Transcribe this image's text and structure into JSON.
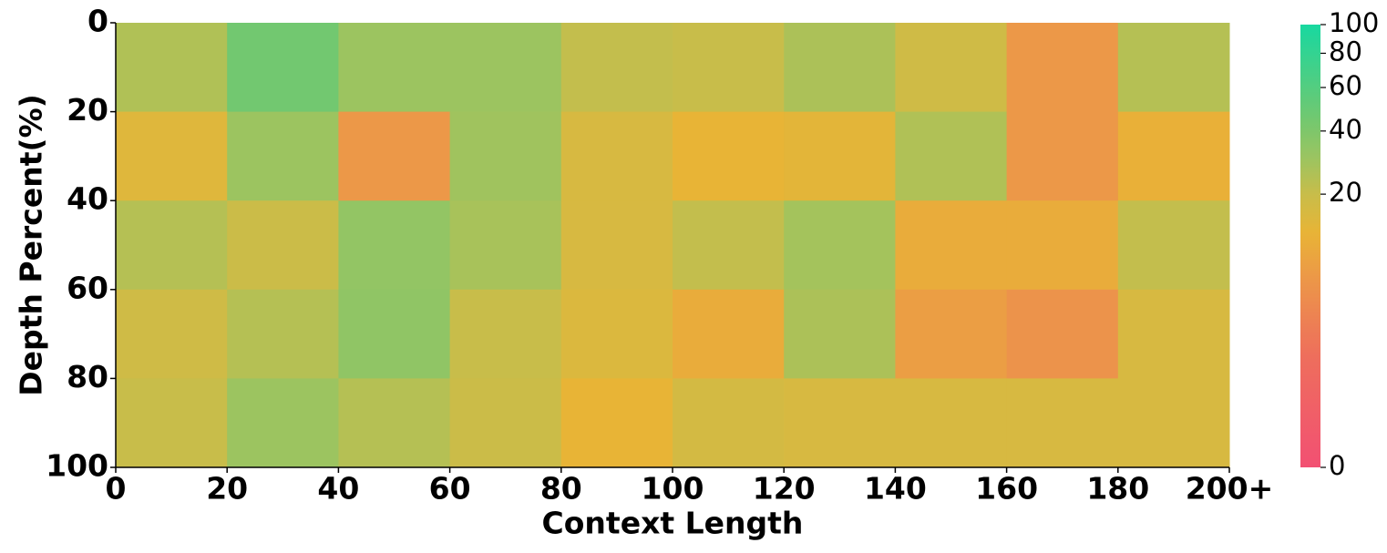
{
  "chart_data": {
    "type": "heatmap",
    "x_label": "Context Length",
    "y_label": "Depth Percent(%)",
    "xlim": [
      0,
      200
    ],
    "ylim": [
      0,
      100
    ],
    "y_inverted": true,
    "xticks": [
      0,
      20,
      40,
      60,
      80,
      100,
      120,
      140,
      160,
      180,
      {
        "value": 200,
        "label": "200+"
      }
    ],
    "yticks": [
      0,
      20,
      40,
      60,
      80,
      100
    ],
    "x_edges": [
      0,
      20,
      40,
      60,
      80,
      100,
      120,
      140,
      160,
      180,
      200
    ],
    "y_edges": [
      0,
      20,
      40,
      60,
      80,
      100
    ],
    "values": [
      [
        25,
        45,
        30,
        30,
        21,
        20,
        26,
        18,
        6,
        24
      ],
      [
        14,
        30,
        6,
        29,
        16,
        12,
        13,
        25,
        6,
        11
      ],
      [
        24,
        19,
        33,
        27,
        16,
        21,
        28,
        10,
        10,
        21
      ],
      [
        18,
        24,
        34,
        20,
        15,
        10,
        26,
        7,
        5,
        16
      ],
      [
        20,
        30,
        24,
        19,
        12,
        17,
        16,
        16,
        16,
        16
      ]
    ],
    "color_scale": {
      "type": "power",
      "exponent": 0.3,
      "domain": [
        0,
        100
      ]
    },
    "colormap": [
      {
        "value": 0,
        "color": "#f25073"
      },
      {
        "value": 1,
        "color": "#ee6e5c"
      },
      {
        "value": 6,
        "color": "#ec9848"
      },
      {
        "value": 12,
        "color": "#e8b436"
      },
      {
        "value": 20,
        "color": "#c8bd4a"
      },
      {
        "value": 30,
        "color": "#9cc460"
      },
      {
        "value": 45,
        "color": "#72c870"
      },
      {
        "value": 100,
        "color": "#18d8a0"
      }
    ],
    "colorbar_ticks": [
      0,
      20,
      40,
      60,
      80,
      100
    ]
  }
}
